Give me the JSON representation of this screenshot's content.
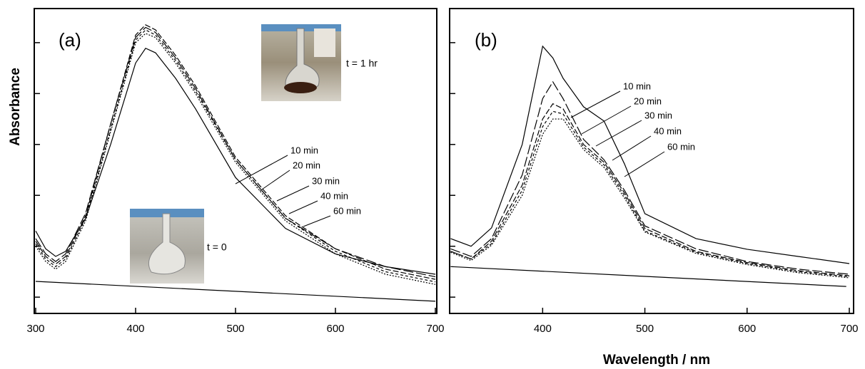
{
  "figure": {
    "y_label": "Absorbance",
    "x_label": "Wavelength  /  nm"
  },
  "chart_data": [
    {
      "type": "line",
      "panel_label": "(a)",
      "xlim": [
        300,
        700
      ],
      "xticks": [
        300,
        400,
        500,
        600,
        700
      ],
      "ylim": [
        -0.32,
        5.67
      ],
      "yticks": [
        0,
        1,
        2,
        3,
        4,
        5
      ],
      "annotations": [
        "t = 1 hr",
        "t = 0"
      ],
      "x": [
        300,
        310,
        320,
        330,
        350,
        375,
        400,
        410,
        420,
        440,
        460,
        500,
        550,
        600,
        650,
        700
      ],
      "series": [
        {
          "name": "10 min",
          "color": "#000000",
          "line_style": "solid",
          "values": [
            1.3,
            0.95,
            0.8,
            0.9,
            1.55,
            3.0,
            4.6,
            4.89,
            4.8,
            4.3,
            3.7,
            2.35,
            1.35,
            0.85,
            0.6,
            0.45
          ]
        },
        {
          "name": "20 min",
          "color": "#000000",
          "line_style": "long-dash",
          "values": [
            1.15,
            0.85,
            0.7,
            0.85,
            1.65,
            3.4,
            5.1,
            5.3,
            5.2,
            4.7,
            4.1,
            2.7,
            1.55,
            0.95,
            0.6,
            0.4
          ]
        },
        {
          "name": "30 min",
          "color": "#000000",
          "line_style": "dash",
          "values": [
            1.1,
            0.8,
            0.65,
            0.8,
            1.6,
            3.4,
            5.15,
            5.35,
            5.25,
            4.75,
            4.15,
            2.75,
            1.6,
            0.95,
            0.55,
            0.35
          ]
        },
        {
          "name": "40 min",
          "color": "#000000",
          "line_style": "short-dash",
          "values": [
            1.05,
            0.75,
            0.6,
            0.75,
            1.55,
            3.3,
            5.05,
            5.25,
            5.15,
            4.65,
            4.05,
            2.7,
            1.55,
            0.9,
            0.5,
            0.3
          ]
        },
        {
          "name": "60 min",
          "color": "#000000",
          "line_style": "dot",
          "values": [
            1.0,
            0.7,
            0.55,
            0.7,
            1.5,
            3.25,
            5.0,
            5.18,
            5.1,
            4.6,
            4.0,
            2.65,
            1.5,
            0.85,
            0.45,
            0.25
          ]
        }
      ],
      "baseline": {
        "x": [
          300,
          700
        ],
        "values": [
          0.31,
          -0.08
        ],
        "color": "#000000"
      }
    },
    {
      "type": "line",
      "panel_label": "(b)",
      "xlim": [
        309,
        700
      ],
      "xticks": [
        400,
        500,
        600,
        700
      ],
      "ylim": [
        -0.32,
        5.67
      ],
      "yticks": [
        0,
        1,
        2,
        3,
        4,
        5
      ],
      "x": [
        310,
        330,
        350,
        380,
        400,
        410,
        420,
        440,
        460,
        480,
        500,
        550,
        600,
        650,
        700
      ],
      "series": [
        {
          "name": "10 min",
          "color": "#000000",
          "line_style": "solid",
          "values": [
            1.15,
            1.0,
            1.36,
            3.0,
            4.93,
            4.7,
            4.3,
            3.74,
            3.46,
            2.62,
            1.64,
            1.15,
            0.94,
            0.8,
            0.66
          ]
        },
        {
          "name": "20 min",
          "color": "#000000",
          "line_style": "long-dash",
          "values": [
            0.95,
            0.8,
            1.15,
            2.4,
            3.9,
            4.23,
            3.9,
            3.1,
            2.7,
            2.1,
            1.4,
            0.95,
            0.7,
            0.55,
            0.45
          ]
        },
        {
          "name": "30 min",
          "color": "#000000",
          "line_style": "dash",
          "values": [
            0.9,
            0.75,
            1.1,
            2.2,
            3.5,
            3.8,
            3.7,
            3.0,
            2.65,
            2.05,
            1.35,
            0.9,
            0.68,
            0.52,
            0.42
          ]
        },
        {
          "name": "40 min",
          "color": "#000000",
          "line_style": "short-dash",
          "values": [
            0.9,
            0.75,
            1.05,
            2.1,
            3.35,
            3.65,
            3.6,
            2.95,
            2.6,
            2.0,
            1.3,
            0.88,
            0.66,
            0.5,
            0.4
          ]
        },
        {
          "name": "60 min",
          "color": "#000000",
          "line_style": "dot",
          "values": [
            0.88,
            0.72,
            1.02,
            2.0,
            3.2,
            3.5,
            3.5,
            2.9,
            2.55,
            1.95,
            1.28,
            0.86,
            0.64,
            0.48,
            0.38
          ]
        }
      ],
      "baseline": {
        "x": [
          310,
          697
        ],
        "values": [
          0.6,
          0.21
        ],
        "color": "#000000"
      }
    }
  ]
}
